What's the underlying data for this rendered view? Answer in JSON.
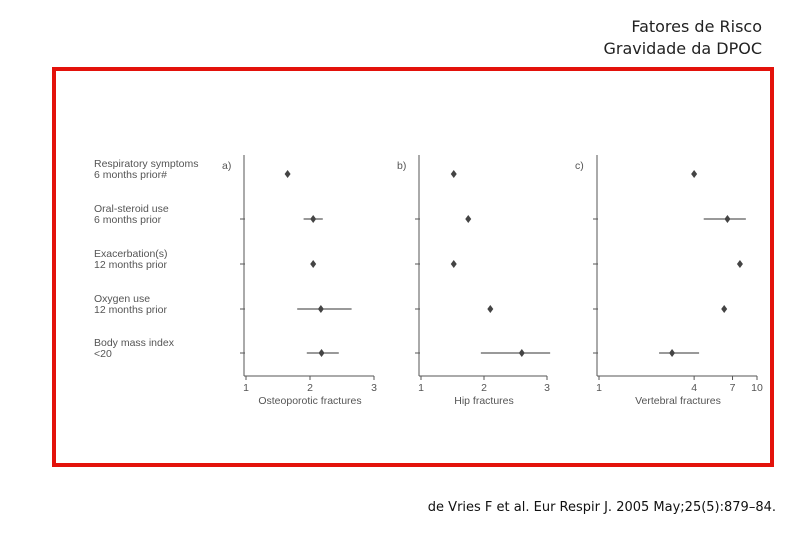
{
  "slide": {
    "title_line1": "Fatores de Risco",
    "title_line2": "Gravidade da DPOC",
    "citation": "de Vries F et al. Eur Respir J. 2005 May;25(5):879–84.",
    "frame_color": "#e3120b"
  },
  "chart_data": {
    "type": "forest",
    "categories": [
      "Respiratory symptoms\n6 months prior#",
      "Oral-steroid use\n6 months prior",
      "Exacerbation(s)\n12 months prior",
      "Oxygen use\n12 months prior",
      "Body mass index\n<20"
    ],
    "panels": [
      {
        "label": "a)",
        "xlabel": "Osteoporotic fractures",
        "xlim": [
          1,
          3
        ],
        "ticks": [
          1,
          2,
          3
        ],
        "scale": "linear",
        "estimates": [
          1.65,
          2.05,
          2.05,
          2.17,
          2.18
        ],
        "ci": [
          null,
          [
            1.9,
            2.2
          ],
          null,
          [
            1.8,
            2.65
          ],
          [
            1.95,
            2.45
          ]
        ]
      },
      {
        "label": "b)",
        "xlabel": "Hip fractures",
        "xlim": [
          1,
          3
        ],
        "ticks": [
          1,
          2,
          3
        ],
        "scale": "linear",
        "estimates": [
          1.52,
          1.75,
          1.52,
          2.1,
          2.6
        ],
        "ci": [
          null,
          null,
          null,
          null,
          [
            1.95,
            3.05
          ]
        ]
      },
      {
        "label": "c)",
        "xlabel": "Vertebral fractures",
        "xlim": [
          1,
          10
        ],
        "ticks": [
          1,
          4,
          7,
          10
        ],
        "scale": "log",
        "estimates": [
          4,
          6.5,
          7.8,
          6.2,
          2.9
        ],
        "ci": [
          null,
          [
            4.6,
            8.5
          ],
          null,
          null,
          [
            2.4,
            4.3
          ]
        ]
      }
    ],
    "colors": {
      "point": "#444444",
      "line": "#333333",
      "axis": "#555555",
      "text": "#555555"
    }
  }
}
